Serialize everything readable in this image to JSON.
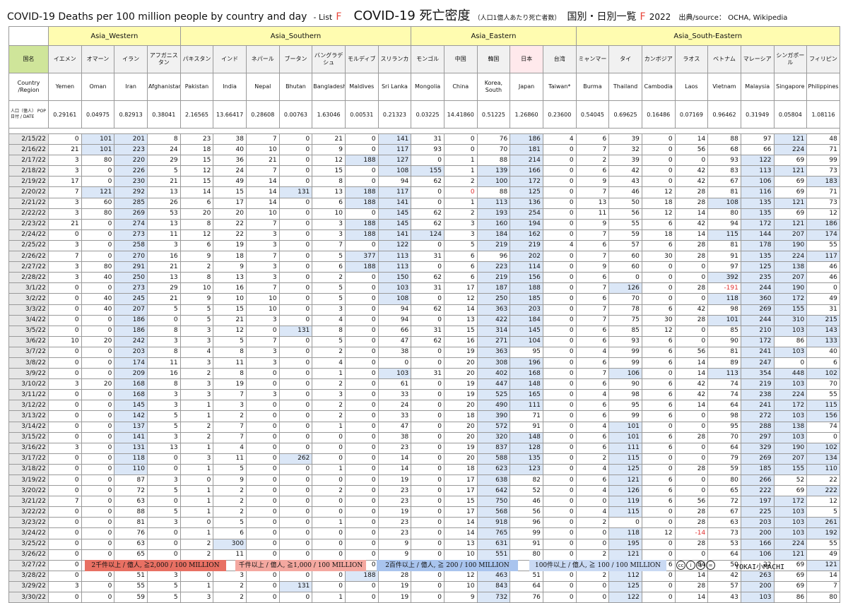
{
  "title": {
    "en": "COVID-19 Deaths per 100 million people by country and day",
    "list_prefix": "- List",
    "list_letter": "F",
    "jp_main": "COVID-19 死亡密度",
    "jp_sub": "（人口1億人あたり死亡者数）",
    "jp_after": "国別・日別一覧",
    "jp_letter": "F",
    "year": "2022",
    "source": "出典/source： OCHA, Wikipedia"
  },
  "regions": [
    {
      "label": "Asia_Western",
      "span": 4
    },
    {
      "label": "Asia_Southern",
      "span": 7
    },
    {
      "label": "Asia_Eastern",
      "span": 5
    },
    {
      "label": "Asia_South-Eastern",
      "span": 8
    }
  ],
  "corner_jp": "国名",
  "corner_en": "Country /Region",
  "corner_pop": "人口（億人） POP 日付 / DATE",
  "countries": [
    {
      "jp": "イエメン",
      "en": "Yemen",
      "pop": "0.29161"
    },
    {
      "jp": "オマーン",
      "en": "Oman",
      "pop": "0.04975"
    },
    {
      "jp": "イラン",
      "en": "Iran",
      "pop": "0.82913"
    },
    {
      "jp": "アフガニスタン",
      "en": "Afghanistan",
      "pop": "0.38041"
    },
    {
      "jp": "パキスタン",
      "en": "Pakistan",
      "pop": "2.16565"
    },
    {
      "jp": "インド",
      "en": "India",
      "pop": "13.66417"
    },
    {
      "jp": "ネパール",
      "en": "Nepal",
      "pop": "0.28608"
    },
    {
      "jp": "ブータン",
      "en": "Bhutan",
      "pop": "0.00763"
    },
    {
      "jp": "バングラデシュ",
      "en": "Bangladesh",
      "pop": "1.63046"
    },
    {
      "jp": "モルディブ",
      "en": "Maldives",
      "pop": "0.00531"
    },
    {
      "jp": "スリランカ",
      "en": "Sri Lanka",
      "pop": "0.21323"
    },
    {
      "jp": "モンゴル",
      "en": "Mongolia",
      "pop": "0.03225"
    },
    {
      "jp": "中国",
      "en": "China",
      "pop": "14.41860"
    },
    {
      "jp": "韓国",
      "en": "Korea, South",
      "pop": "0.51225"
    },
    {
      "jp": "日本",
      "en": "Japan",
      "pop": "1.26860"
    },
    {
      "jp": "台湾",
      "en": "Taiwan*",
      "pop": "0.23600"
    },
    {
      "jp": "ミャンマー",
      "en": "Burma",
      "pop": "0.54045"
    },
    {
      "jp": "タイ",
      "en": "Thailand",
      "pop": "0.69625"
    },
    {
      "jp": "カンボジア",
      "en": "Cambodia",
      "pop": "0.16486"
    },
    {
      "jp": "ラオス",
      "en": "Laos",
      "pop": "0.07169"
    },
    {
      "jp": "ベトナム",
      "en": "Vietnam",
      "pop": "0.96462"
    },
    {
      "jp": "マレーシア",
      "en": "Malaysia",
      "pop": "0.31949"
    },
    {
      "jp": "シンガポール",
      "en": "Singapore",
      "pop": "0.05804"
    },
    {
      "jp": "フィリピン",
      "en": "Philippines",
      "pop": "1.08116"
    }
  ],
  "rows": [
    {
      "date": "2/15/22",
      "v": [
        0,
        101,
        201,
        8,
        23,
        38,
        7,
        0,
        21,
        0,
        141,
        31,
        0,
        76,
        186,
        4,
        6,
        39,
        0,
        14,
        88,
        97,
        121,
        48
      ]
    },
    {
      "date": "2/16/22",
      "v": [
        21,
        101,
        223,
        24,
        18,
        40,
        10,
        0,
        9,
        0,
        117,
        93,
        0,
        70,
        181,
        0,
        7,
        32,
        0,
        56,
        68,
        66,
        224,
        71
      ]
    },
    {
      "date": "2/17/22",
      "v": [
        3,
        80,
        220,
        29,
        15,
        36,
        21,
        0,
        12,
        188,
        127,
        0,
        1,
        88,
        214,
        0,
        2,
        39,
        0,
        0,
        93,
        122,
        69,
        99
      ]
    },
    {
      "date": "2/18/22",
      "v": [
        3,
        0,
        226,
        5,
        12,
        24,
        7,
        0,
        15,
        0,
        108,
        155,
        1,
        139,
        166,
        0,
        6,
        42,
        0,
        42,
        83,
        113,
        121,
        73
      ]
    },
    {
      "date": "2/19/22",
      "v": [
        17,
        0,
        230,
        21,
        15,
        49,
        14,
        0,
        8,
        0,
        94,
        62,
        2,
        100,
        172,
        0,
        9,
        43,
        0,
        42,
        67,
        106,
        69,
        183
      ]
    },
    {
      "date": "2/20/22",
      "v": [
        7,
        121,
        292,
        13,
        14,
        15,
        14,
        131,
        13,
        188,
        117,
        0,
        0,
        88,
        125,
        0,
        7,
        46,
        12,
        28,
        81,
        116,
        69,
        71
      ]
    },
    {
      "date": "2/21/22",
      "v": [
        3,
        60,
        285,
        26,
        6,
        17,
        14,
        0,
        6,
        188,
        141,
        0,
        1,
        113,
        136,
        0,
        13,
        50,
        18,
        28,
        108,
        135,
        121,
        73
      ]
    },
    {
      "date": "2/22/22",
      "v": [
        3,
        80,
        269,
        53,
        20,
        20,
        10,
        0,
        10,
        0,
        145,
        62,
        2,
        193,
        254,
        0,
        11,
        56,
        12,
        14,
        80,
        135,
        69,
        12
      ]
    },
    {
      "date": "2/23/22",
      "v": [
        21,
        0,
        274,
        13,
        8,
        22,
        7,
        0,
        3,
        188,
        145,
        62,
        3,
        160,
        194,
        0,
        9,
        55,
        6,
        42,
        94,
        172,
        121,
        186
      ]
    },
    {
      "date": "2/24/22",
      "v": [
        0,
        0,
        273,
        11,
        12,
        22,
        3,
        0,
        3,
        188,
        141,
        124,
        3,
        184,
        162,
        0,
        7,
        59,
        18,
        14,
        115,
        144,
        207,
        174
      ]
    },
    {
      "date": "2/25/22",
      "v": [
        3,
        0,
        258,
        3,
        6,
        19,
        3,
        0,
        7,
        0,
        122,
        0,
        5,
        219,
        219,
        4,
        6,
        57,
        6,
        28,
        81,
        178,
        190,
        55
      ]
    },
    {
      "date": "2/26/22",
      "v": [
        7,
        0,
        270,
        16,
        9,
        18,
        7,
        0,
        5,
        377,
        113,
        31,
        6,
        96,
        202,
        0,
        7,
        60,
        30,
        28,
        91,
        135,
        224,
        117
      ]
    },
    {
      "date": "2/27/22",
      "v": [
        3,
        80,
        291,
        21,
        2,
        9,
        3,
        0,
        6,
        188,
        113,
        0,
        6,
        223,
        114,
        0,
        9,
        60,
        0,
        0,
        97,
        125,
        138,
        46
      ]
    },
    {
      "date": "2/28/22",
      "v": [
        3,
        40,
        250,
        13,
        8,
        13,
        3,
        0,
        2,
        0,
        150,
        62,
        6,
        219,
        156,
        0,
        6,
        0,
        0,
        0,
        392,
        235,
        207,
        46
      ]
    },
    {
      "date": "3/1/22",
      "v": [
        0,
        0,
        273,
        29,
        10,
        16,
        7,
        0,
        5,
        0,
        103,
        31,
        17,
        187,
        188,
        0,
        7,
        126,
        0,
        28,
        -191,
        244,
        190,
        0
      ]
    },
    {
      "date": "3/2/22",
      "v": [
        0,
        40,
        245,
        21,
        9,
        10,
        10,
        0,
        5,
        0,
        108,
        0,
        12,
        250,
        185,
        0,
        6,
        70,
        0,
        0,
        118,
        360,
        172,
        49
      ]
    },
    {
      "date": "3/3/22",
      "v": [
        0,
        40,
        207,
        5,
        5,
        15,
        10,
        0,
        3,
        0,
        94,
        62,
        14,
        363,
        203,
        0,
        7,
        78,
        6,
        42,
        98,
        269,
        155,
        31
      ]
    },
    {
      "date": "3/4/22",
      "v": [
        0,
        0,
        186,
        0,
        5,
        21,
        3,
        0,
        4,
        0,
        94,
        0,
        13,
        422,
        184,
        0,
        7,
        75,
        30,
        28,
        101,
        244,
        310,
        215
      ]
    },
    {
      "date": "3/5/22",
      "v": [
        0,
        0,
        186,
        8,
        3,
        12,
        0,
        131,
        8,
        0,
        66,
        31,
        15,
        314,
        145,
        0,
        6,
        85,
        12,
        0,
        85,
        210,
        103,
        143
      ]
    },
    {
      "date": "3/6/22",
      "v": [
        10,
        20,
        242,
        3,
        3,
        5,
        7,
        0,
        5,
        0,
        47,
        62,
        16,
        271,
        104,
        0,
        6,
        93,
        6,
        0,
        90,
        172,
        86,
        133
      ]
    },
    {
      "date": "3/7/22",
      "v": [
        0,
        0,
        203,
        8,
        4,
        8,
        3,
        0,
        2,
        0,
        38,
        0,
        19,
        363,
        95,
        0,
        4,
        99,
        6,
        56,
        81,
        241,
        103,
        40
      ]
    },
    {
      "date": "3/8/22",
      "v": [
        0,
        0,
        174,
        11,
        3,
        11,
        3,
        0,
        4,
        0,
        0,
        0,
        20,
        308,
        196,
        0,
        6,
        99,
        6,
        14,
        89,
        247,
        0,
        6
      ]
    },
    {
      "date": "3/9/22",
      "v": [
        0,
        0,
        209,
        16,
        2,
        8,
        0,
        0,
        1,
        0,
        103,
        31,
        20,
        402,
        168,
        0,
        7,
        106,
        0,
        14,
        113,
        354,
        448,
        102
      ]
    },
    {
      "date": "3/10/22",
      "v": [
        3,
        20,
        168,
        8,
        3,
        19,
        0,
        0,
        2,
        0,
        61,
        0,
        19,
        447,
        148,
        0,
        6,
        90,
        6,
        42,
        74,
        219,
        103,
        70
      ]
    },
    {
      "date": "3/11/22",
      "v": [
        0,
        0,
        168,
        3,
        3,
        7,
        3,
        0,
        3,
        0,
        33,
        0,
        19,
        525,
        165,
        0,
        4,
        98,
        6,
        42,
        74,
        238,
        224,
        55
      ]
    },
    {
      "date": "3/12/22",
      "v": [
        0,
        0,
        145,
        3,
        1,
        3,
        0,
        0,
        2,
        0,
        24,
        0,
        20,
        490,
        111,
        0,
        6,
        95,
        6,
        14,
        64,
        241,
        172,
        115
      ]
    },
    {
      "date": "3/13/22",
      "v": [
        0,
        0,
        142,
        5,
        1,
        2,
        0,
        0,
        2,
        0,
        33,
        0,
        18,
        390,
        71,
        0,
        6,
        99,
        6,
        0,
        98,
        272,
        103,
        156
      ]
    },
    {
      "date": "3/14/22",
      "v": [
        0,
        0,
        137,
        5,
        2,
        7,
        0,
        0,
        1,
        0,
        47,
        0,
        20,
        572,
        91,
        0,
        4,
        101,
        0,
        0,
        95,
        288,
        138,
        74
      ]
    },
    {
      "date": "3/15/22",
      "v": [
        0,
        0,
        141,
        3,
        2,
        7,
        0,
        0,
        0,
        0,
        38,
        0,
        20,
        320,
        148,
        0,
        6,
        101,
        6,
        28,
        70,
        297,
        103,
        0
      ]
    },
    {
      "date": "3/16/22",
      "v": [
        3,
        0,
        131,
        13,
        1,
        4,
        0,
        0,
        0,
        0,
        23,
        0,
        19,
        837,
        128,
        0,
        6,
        111,
        6,
        0,
        64,
        329,
        190,
        102
      ]
    },
    {
      "date": "3/17/22",
      "v": [
        0,
        0,
        118,
        0,
        3,
        11,
        0,
        262,
        0,
        0,
        14,
        0,
        20,
        588,
        135,
        0,
        2,
        115,
        0,
        0,
        79,
        269,
        207,
        134
      ]
    },
    {
      "date": "3/18/22",
      "v": [
        0,
        0,
        110,
        0,
        1,
        5,
        0,
        0,
        1,
        0,
        14,
        0,
        18,
        623,
        123,
        0,
        4,
        125,
        0,
        28,
        59,
        185,
        155,
        110
      ]
    },
    {
      "date": "3/19/22",
      "v": [
        0,
        0,
        87,
        3,
        0,
        9,
        0,
        0,
        0,
        0,
        19,
        0,
        17,
        638,
        82,
        0,
        6,
        121,
        6,
        0,
        80,
        266,
        52,
        22
      ]
    },
    {
      "date": "3/20/22",
      "v": [
        0,
        0,
        72,
        5,
        1,
        2,
        0,
        0,
        2,
        0,
        23,
        0,
        17,
        642,
        52,
        0,
        4,
        126,
        6,
        0,
        65,
        222,
        69,
        222
      ]
    },
    {
      "date": "3/21/22",
      "v": [
        7,
        0,
        63,
        0,
        1,
        2,
        0,
        0,
        0,
        0,
        23,
        0,
        15,
        750,
        46,
        0,
        0,
        119,
        6,
        56,
        72,
        197,
        172,
        12
      ]
    },
    {
      "date": "3/22/22",
      "v": [
        0,
        0,
        88,
        5,
        1,
        2,
        0,
        0,
        0,
        0,
        19,
        0,
        17,
        568,
        56,
        0,
        4,
        115,
        0,
        28,
        67,
        225,
        103,
        5
      ]
    },
    {
      "date": "3/23/22",
      "v": [
        0,
        0,
        81,
        3,
        0,
        5,
        0,
        0,
        1,
        0,
        23,
        0,
        14,
        918,
        96,
        0,
        2,
        0,
        0,
        28,
        63,
        203,
        103,
        261
      ]
    },
    {
      "date": "3/24/22",
      "v": [
        0,
        0,
        76,
        0,
        1,
        6,
        0,
        0,
        0,
        0,
        23,
        0,
        14,
        765,
        99,
        0,
        0,
        118,
        12,
        -14,
        73,
        200,
        103,
        192
      ]
    },
    {
      "date": "3/25/22",
      "v": [
        0,
        0,
        63,
        0,
        2,
        300,
        0,
        0,
        0,
        0,
        9,
        0,
        13,
        631,
        91,
        0,
        0,
        195,
        0,
        28,
        53,
        166,
        224,
        55
      ]
    },
    {
      "date": "3/26/22",
      "v": [
        0,
        0,
        65,
        0,
        2,
        11,
        0,
        0,
        0,
        0,
        9,
        0,
        10,
        551,
        80,
        0,
        2,
        121,
        0,
        0,
        64,
        106,
        121,
        49
      ]
    },
    {
      "date": "3/27/22",
      "v": [
        0,
        0,
        60,
        13,
        0,
        2,
        0,
        0,
        0,
        0,
        23,
        0,
        10,
        550,
        48,
        0,
        2,
        116,
        6,
        84,
        50,
        22,
        69,
        121
      ]
    },
    {
      "date": "3/28/22",
      "v": [
        0,
        0,
        51,
        3,
        0,
        3,
        0,
        0,
        0,
        188,
        28,
        0,
        12,
        463,
        51,
        0,
        2,
        112,
        0,
        14,
        42,
        263,
        69,
        14
      ]
    },
    {
      "date": "3/29/22",
      "v": [
        3,
        0,
        55,
        5,
        1,
        2,
        0,
        131,
        0,
        0,
        19,
        0,
        10,
        843,
        64,
        0,
        0,
        125,
        0,
        28,
        57,
        200,
        69,
        7
      ]
    },
    {
      "date": "3/30/22",
      "v": [
        0,
        0,
        59,
        5,
        3,
        2,
        0,
        0,
        1,
        0,
        19,
        0,
        9,
        732,
        76,
        0,
        0,
        122,
        0,
        14,
        43,
        103,
        86,
        80
      ]
    }
  ],
  "legend": [
    {
      "label": "2千件以上 / 億人, ≧2,000 / 100 MILLION",
      "color": "#e87063"
    },
    {
      "label": "千件以上 / 億人, ≧1,000 / 100 MILLION",
      "color": "#f4a8a0"
    },
    {
      "label": "2百件以上 / 億人, ≧ 200 / 100 MILLION",
      "color": "#a9c4ee"
    },
    {
      "label": "100件以上 / 億人, ≧ 100 / 100 MILLION",
      "color": "#c9d9f3"
    }
  ],
  "license_icons": [
    "cc-icon",
    "by-icon",
    "nc-icon",
    "nd-icon"
  ],
  "signature": "YOKAI小MACHI"
}
